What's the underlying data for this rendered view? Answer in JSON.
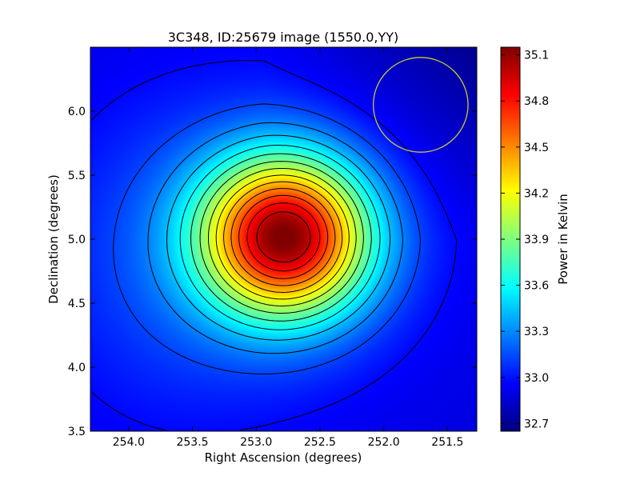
{
  "chart_data": {
    "type": "heatmap",
    "title": "3C348, ID:25679 image (1550.0,YY)",
    "xlabel": "Right Ascension (degrees)",
    "ylabel": "Declination (degrees)",
    "colorbar_label": "Power in Kelvin",
    "colormap": "jet",
    "xlim": [
      254.3,
      251.27
    ],
    "ylim": [
      3.5,
      6.5
    ],
    "x_ticks": [
      254.0,
      253.5,
      253.0,
      252.5,
      252.0,
      251.5
    ],
    "x_tick_labels": [
      "254.0",
      "253.5",
      "253.0",
      "252.5",
      "252.0",
      "251.5"
    ],
    "y_ticks": [
      3.5,
      4.0,
      4.5,
      5.0,
      5.5,
      6.0
    ],
    "y_tick_labels": [
      "3.5",
      "4.0",
      "4.5",
      "5.0",
      "5.5",
      "6.0"
    ],
    "value_range": [
      32.65,
      35.15
    ],
    "colorbar_ticks": [
      32.7,
      33.0,
      33.3,
      33.6,
      33.9,
      34.2,
      34.5,
      34.8,
      35.1
    ],
    "colorbar_tick_labels": [
      "32.7",
      "33.0",
      "33.3",
      "33.6",
      "33.9",
      "34.2",
      "34.5",
      "34.8",
      "35.1"
    ],
    "source": {
      "ra": 252.77,
      "dec": 5.02,
      "peak": 35.15
    },
    "contours": 14,
    "beam_circle": {
      "ra": 251.71,
      "dec": 6.05,
      "radius_deg": 0.37,
      "color": "#c8c832"
    }
  }
}
